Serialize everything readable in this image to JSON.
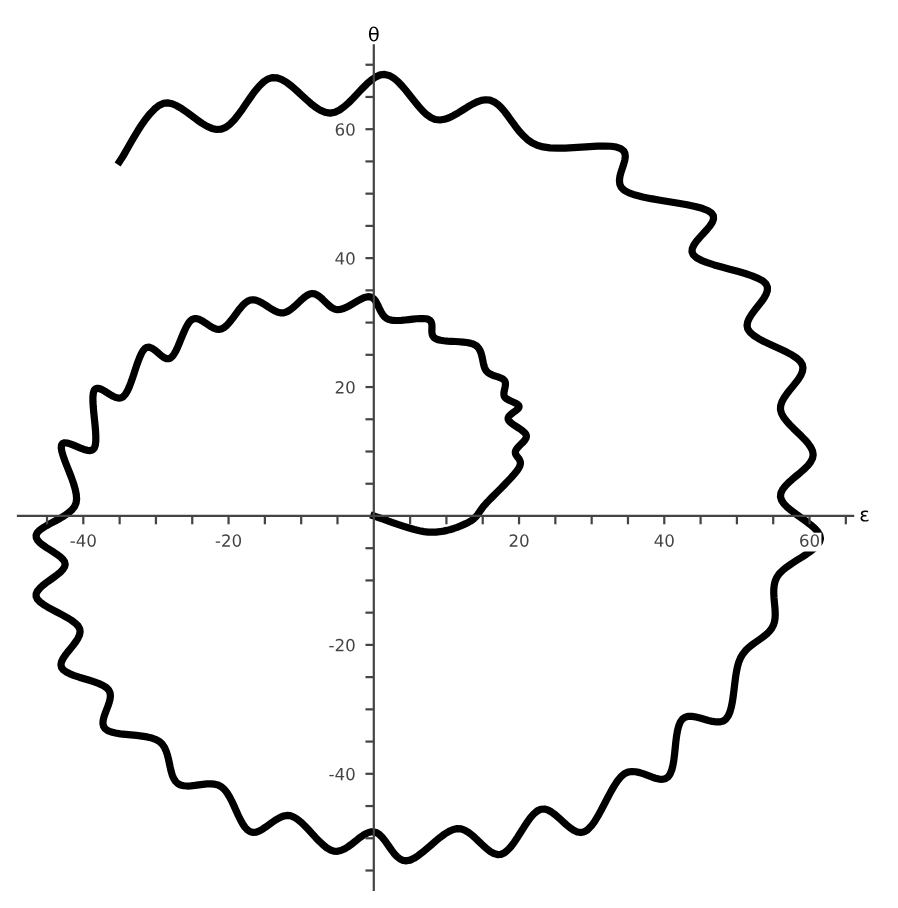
{
  "chart_data": {
    "type": "line",
    "xlabel": "ε",
    "ylabel": "θ",
    "xlim": [
      -49,
      66
    ],
    "ylim": [
      -58,
      73
    ],
    "xticks": [
      {
        "value": -45,
        "label": null
      },
      -40,
      {
        "value": -35,
        "label": null
      },
      {
        "value": -30,
        "label": null
      },
      {
        "value": -25,
        "label": null
      },
      -20,
      {
        "value": -15,
        "label": null
      },
      {
        "value": -10,
        "label": null
      },
      {
        "value": -5,
        "label": null
      },
      {
        "value": 5,
        "label": null
      },
      {
        "value": 10,
        "label": null
      },
      {
        "value": 15,
        "label": null
      },
      20,
      {
        "value": 25,
        "label": null
      },
      {
        "value": 30,
        "label": null
      },
      {
        "value": 35,
        "label": null
      },
      40,
      {
        "value": 45,
        "label": null
      },
      {
        "value": 50,
        "label": null
      },
      {
        "value": 55,
        "label": null
      },
      60,
      {
        "value": 65,
        "label": null
      }
    ],
    "yticks": [
      {
        "value": -55,
        "label": null
      },
      {
        "value": -50,
        "label": null
      },
      {
        "value": -45,
        "label": null
      },
      -40,
      {
        "value": -35,
        "label": null
      },
      {
        "value": -30,
        "label": null
      },
      {
        "value": -25,
        "label": null
      },
      -20,
      {
        "value": -15,
        "label": null
      },
      {
        "value": -10,
        "label": null
      },
      {
        "value": -5,
        "label": null
      },
      {
        "value": 5,
        "label": null
      },
      {
        "value": 10,
        "label": null
      },
      {
        "value": 15,
        "label": null
      },
      20,
      {
        "value": 25,
        "label": null
      },
      {
        "value": 30,
        "label": null
      },
      {
        "value": 35,
        "label": null
      },
      40,
      {
        "value": 45,
        "label": null
      },
      {
        "value": 50,
        "label": null
      },
      {
        "value": 55,
        "label": null
      },
      60,
      {
        "value": 65,
        "label": null
      },
      {
        "value": 70,
        "label": null
      }
    ],
    "grid": false,
    "legend": false,
    "marker": "none",
    "line_style": "solid",
    "series": [
      {
        "color": "#000000",
        "x": [
          0,
          7.5,
          13,
          15.5,
          20,
          19.5,
          21,
          18.5,
          20,
          18,
          18,
          15.5,
          14,
          8.5,
          7.5,
          2,
          -0.5,
          -5,
          -8.5,
          -12.5,
          -17,
          -21,
          -25,
          -28,
          -31.5,
          -34.5,
          -38.5,
          -38.5,
          -43,
          -41,
          -46.5,
          -42.5,
          -46.5,
          -40.5,
          -43,
          -36.5,
          -37,
          -29.5,
          -27,
          -21,
          -17,
          -11.5,
          -5.5,
          0,
          4.5,
          11.5,
          17.5,
          23,
          29,
          34.5,
          40.5,
          42.5,
          48.5,
          50.5,
          55,
          55.5,
          61.5,
          56,
          60.5,
          56,
          59,
          51.5,
          54,
          44,
          46.5,
          34.5,
          34,
          22.5,
          16,
          8.5,
          1.5,
          -6,
          -14,
          -21,
          -29,
          -35
        ],
        "values": [
          0,
          -2.5,
          -1,
          2,
          7.5,
          10,
          12.5,
          15,
          17,
          18.5,
          21,
          22.5,
          26.5,
          27.5,
          30.5,
          30.5,
          34,
          32,
          34.5,
          31.5,
          33.5,
          29,
          30.5,
          24.5,
          26,
          18.5,
          19.5,
          10.5,
          11,
          2,
          -3,
          -7.5,
          -12.5,
          -17.5,
          -23.5,
          -27,
          -33,
          -35,
          -41.5,
          -42,
          -49,
          -46.5,
          -52,
          -49,
          -53.5,
          -48.5,
          -52.5,
          -45.5,
          -49,
          -40,
          -40.5,
          -31.5,
          -31.5,
          -22,
          -17,
          -9.5,
          -3.5,
          3,
          9.5,
          16.5,
          23.5,
          29,
          36,
          40.5,
          47,
          50.5,
          57,
          57.5,
          64.5,
          61.5,
          68.5,
          62.5,
          68,
          60,
          64,
          55
        ]
      }
    ]
  }
}
